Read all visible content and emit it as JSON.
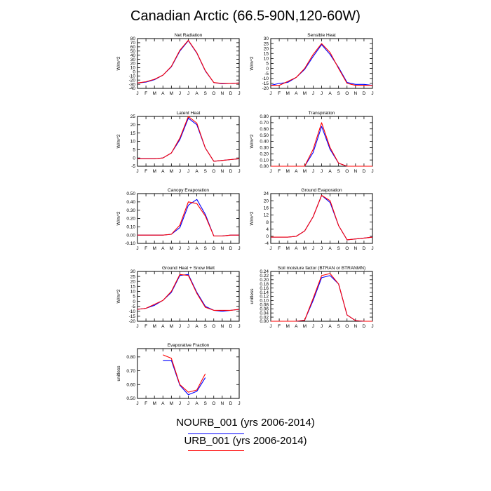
{
  "title": "Canadian Arctic (66.5-90N,120-60W)",
  "colors": {
    "series_a": "#0000ff",
    "series_b": "#ff0000",
    "axis": "#000000"
  },
  "legend": [
    {
      "label": "NOURB_001 (yrs 2006-2014)",
      "color": "#0000ff"
    },
    {
      "label": "URB_001 (yrs 2006-2014)",
      "color": "#ff0000"
    }
  ],
  "chart_data": [
    {
      "type": "line",
      "title": "Net Radiation",
      "ylabel": "W/m^2",
      "categories": [
        "J",
        "F",
        "M",
        "A",
        "M",
        "J",
        "J",
        "A",
        "S",
        "O",
        "N",
        "D",
        "J"
      ],
      "ylim": [
        -40,
        80
      ],
      "yticks": [
        -40,
        -30,
        -20,
        -10,
        0,
        10,
        20,
        30,
        40,
        50,
        60,
        70,
        80
      ],
      "series": [
        {
          "name": "NOURB_001 (yrs 2006-2014)",
          "color": "#0000ff",
          "values": [
            -27,
            -25,
            -19,
            -8,
            12,
            50,
            75,
            45,
            2,
            -26,
            -29,
            -28,
            -27
          ]
        },
        {
          "name": "URB_001 (yrs 2006-2014)",
          "color": "#ff0000",
          "values": [
            -27,
            -24,
            -18,
            -8,
            13,
            52,
            76,
            46,
            3,
            -26,
            -28,
            -28,
            -27
          ]
        }
      ]
    },
    {
      "type": "line",
      "title": "Sensible Heat",
      "ylabel": "W/m^2",
      "categories": [
        "J",
        "F",
        "M",
        "A",
        "M",
        "J",
        "J",
        "A",
        "S",
        "O",
        "N",
        "D",
        "J"
      ],
      "ylim": [
        -20,
        30
      ],
      "yticks": [
        -20,
        -15,
        -10,
        -5,
        0,
        5,
        10,
        15,
        20,
        25,
        30
      ],
      "series": [
        {
          "name": "NOURB_001 (yrs 2006-2014)",
          "color": "#0000ff",
          "values": [
            -17,
            -15,
            -14,
            -9,
            -1,
            12,
            24,
            14,
            1,
            -14,
            -16,
            -16,
            -17
          ]
        },
        {
          "name": "URB_001 (yrs 2006-2014)",
          "color": "#ff0000",
          "values": [
            -17,
            -17,
            -13,
            -9,
            0,
            14,
            25,
            16,
            0,
            -15,
            -17,
            -17,
            -17
          ]
        }
      ]
    },
    {
      "type": "line",
      "title": "Latent Heat",
      "ylabel": "W/m^2",
      "categories": [
        "J",
        "F",
        "M",
        "A",
        "M",
        "J",
        "J",
        "A",
        "S",
        "O",
        "N",
        "D",
        "J"
      ],
      "ylim": [
        -5,
        25
      ],
      "yticks": [
        -5,
        0,
        5,
        10,
        15,
        20,
        25
      ],
      "series": [
        {
          "name": "NOURB_001 (yrs 2006-2014)",
          "color": "#0000ff",
          "values": [
            -0.5,
            -0.5,
            -0.5,
            0,
            3,
            11,
            24,
            20,
            6,
            -2,
            -1.5,
            -1,
            -0.5
          ]
        },
        {
          "name": "URB_001 (yrs 2006-2014)",
          "color": "#ff0000",
          "values": [
            -0.5,
            -0.5,
            -0.5,
            0,
            3,
            12,
            25,
            21,
            6,
            -2,
            -1.5,
            -1,
            -0.5
          ]
        }
      ]
    },
    {
      "type": "line",
      "title": "Transpiration",
      "ylabel": "W/m^2",
      "categories": [
        "J",
        "F",
        "M",
        "A",
        "M",
        "J",
        "J",
        "A",
        "S",
        "O",
        "N",
        "D",
        "J"
      ],
      "ylim": [
        0,
        0.8
      ],
      "yticks": [
        "0.00",
        "0.10",
        "0.20",
        "0.30",
        "0.40",
        "0.50",
        "0.60",
        "0.70",
        "0.80"
      ],
      "series": [
        {
          "name": "NOURB_001 (yrs 2006-2014)",
          "color": "#0000ff",
          "values": [
            0,
            0,
            0,
            0,
            0,
            0.22,
            0.64,
            0.27,
            0.05,
            0,
            0,
            0,
            0
          ]
        },
        {
          "name": "URB_001 (yrs 2006-2014)",
          "color": "#ff0000",
          "values": [
            0,
            0,
            0,
            0,
            0,
            0.27,
            0.7,
            0.3,
            0.05,
            0,
            0,
            0,
            0
          ]
        }
      ]
    },
    {
      "type": "line",
      "title": "Canopy Evaporation",
      "ylabel": "W/m^2",
      "categories": [
        "J",
        "F",
        "M",
        "A",
        "M",
        "J",
        "J",
        "A",
        "S",
        "O",
        "N",
        "D",
        "J"
      ],
      "ylim": [
        -0.1,
        0.5
      ],
      "yticks": [
        "-0.10",
        "0.00",
        "0.10",
        "0.20",
        "0.30",
        "0.40",
        "0.50"
      ],
      "series": [
        {
          "name": "NOURB_001 (yrs 2006-2014)",
          "color": "#0000ff",
          "values": [
            0,
            0,
            0,
            0,
            0.01,
            0.09,
            0.36,
            0.43,
            0.25,
            -0.01,
            -0.01,
            0,
            0
          ]
        },
        {
          "name": "URB_001 (yrs 2006-2014)",
          "color": "#ff0000",
          "values": [
            0,
            0,
            0,
            0,
            0.01,
            0.12,
            0.4,
            0.38,
            0.23,
            -0.01,
            -0.01,
            0,
            0
          ]
        }
      ]
    },
    {
      "type": "line",
      "title": "Ground Evaporation",
      "ylabel": "W/m^2",
      "categories": [
        "J",
        "F",
        "M",
        "A",
        "M",
        "J",
        "J",
        "A",
        "S",
        "O",
        "N",
        "D",
        "J"
      ],
      "ylim": [
        -4,
        24
      ],
      "yticks": [
        -4,
        0,
        4,
        8,
        12,
        16,
        20,
        24
      ],
      "series": [
        {
          "name": "NOURB_001 (yrs 2006-2014)",
          "color": "#0000ff",
          "values": [
            -0.5,
            -0.5,
            -0.5,
            0,
            3,
            11,
            23,
            19,
            6,
            -2,
            -1.5,
            -1,
            -0.5
          ]
        },
        {
          "name": "URB_001 (yrs 2006-2014)",
          "color": "#ff0000",
          "values": [
            -0.5,
            -0.5,
            -0.5,
            0,
            3,
            11,
            23,
            20,
            6,
            -2,
            -1.5,
            -1,
            -0.5
          ]
        }
      ]
    },
    {
      "type": "line",
      "title": "Ground Heat + Snow Melt",
      "ylabel": "W/m^2",
      "categories": [
        "J",
        "F",
        "M",
        "A",
        "M",
        "J",
        "J",
        "A",
        "S",
        "O",
        "N",
        "D",
        "J"
      ],
      "ylim": [
        -20,
        30
      ],
      "yticks": [
        -20,
        -15,
        -10,
        -5,
        0,
        5,
        10,
        15,
        20,
        25,
        30
      ],
      "series": [
        {
          "name": "NOURB_001 (yrs 2006-2014)",
          "color": "#0000ff",
          "values": [
            -8,
            -7,
            -4,
            1,
            9,
            26,
            27,
            9,
            -5,
            -9,
            -10,
            -9,
            -8
          ]
        },
        {
          "name": "URB_001 (yrs 2006-2014)",
          "color": "#ff0000",
          "values": [
            -8,
            -7,
            -3,
            1,
            10,
            27,
            26,
            8,
            -6,
            -9,
            -9,
            -9,
            -8
          ]
        }
      ]
    },
    {
      "type": "line",
      "title": "Soil moisture factor (BTRAN or BTRANMN)",
      "ylabel": "unitless",
      "categories": [
        "J",
        "F",
        "M",
        "A",
        "M",
        "J",
        "J",
        "A",
        "S",
        "O",
        "N",
        "D",
        "J"
      ],
      "ylim": [
        0,
        0.24
      ],
      "yticks": [
        "0.00",
        "0.02",
        "0.04",
        "0.06",
        "0.08",
        "0.10",
        "0.12",
        "0.14",
        "0.16",
        "0.18",
        "0.20",
        "0.22",
        "0.24"
      ],
      "series": [
        {
          "name": "NOURB_001 (yrs 2006-2014)",
          "color": "#0000ff",
          "values": [
            0,
            0,
            0,
            0,
            0.005,
            0.1,
            0.21,
            0.22,
            0.18,
            0.03,
            0.003,
            0,
            0
          ]
        },
        {
          "name": "URB_001 (yrs 2006-2014)",
          "color": "#ff0000",
          "values": [
            0,
            0,
            0,
            0,
            0.005,
            0.11,
            0.22,
            0.23,
            0.18,
            0.03,
            0.003,
            0,
            0
          ]
        }
      ]
    },
    {
      "type": "line",
      "title": "Evaporative Fraction",
      "ylabel": "unitless",
      "categories": [
        "J",
        "F",
        "M",
        "A",
        "M",
        "J",
        "J",
        "A",
        "S",
        "O",
        "N",
        "D",
        "J"
      ],
      "ylim": [
        0.5,
        0.86
      ],
      "yticks": [
        "0.50",
        "0.60",
        "0.70",
        "0.80"
      ],
      "series": [
        {
          "name": "NOURB_001 (yrs 2006-2014)",
          "color": "#0000ff",
          "values": [
            null,
            null,
            null,
            0.775,
            0.775,
            0.595,
            0.527,
            0.551,
            0.65,
            null,
            null,
            null,
            null
          ]
        },
        {
          "name": "URB_001 (yrs 2006-2014)",
          "color": "#ff0000",
          "values": [
            null,
            null,
            null,
            0.815,
            0.79,
            0.6,
            0.545,
            0.561,
            0.678,
            null,
            null,
            null,
            null
          ]
        }
      ]
    }
  ]
}
